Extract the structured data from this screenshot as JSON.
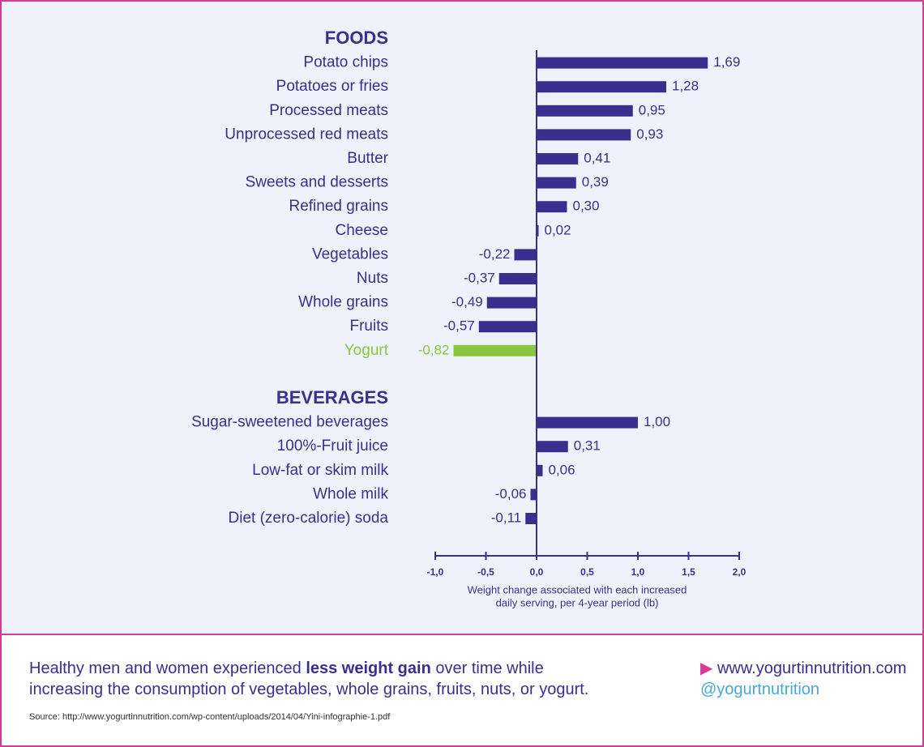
{
  "chart_data": {
    "type": "bar",
    "orientation": "horizontal",
    "groups": [
      {
        "name": "FOODS",
        "categories": [
          "Potato chips",
          "Potatoes or fries",
          "Processed meats",
          "Unprocessed red meats",
          "Butter",
          "Sweets and desserts",
          "Refined grains",
          "Cheese",
          "Vegetables",
          "Nuts",
          "Whole grains",
          "Fruits",
          "Yogurt"
        ],
        "values": [
          1.69,
          1.28,
          0.95,
          0.93,
          0.41,
          0.39,
          0.3,
          0.02,
          -0.22,
          -0.37,
          -0.49,
          -0.57,
          -0.82
        ],
        "value_labels": [
          "1,69",
          "1,28",
          "0,95",
          "0,93",
          "0,41",
          "0,39",
          "0,30",
          "0,02",
          "-0,22",
          "-0,37",
          "-0,49",
          "-0,57",
          "-0,82"
        ],
        "colors": [
          "#3a2f8f",
          "#3a2f8f",
          "#3a2f8f",
          "#3a2f8f",
          "#3a2f8f",
          "#3a2f8f",
          "#3a2f8f",
          "#3a2f8f",
          "#3a2f8f",
          "#3a2f8f",
          "#3a2f8f",
          "#3a2f8f",
          "#8cc63f"
        ]
      },
      {
        "name": "BEVERAGES",
        "categories": [
          "Sugar-sweetened beverages",
          "100%-Fruit juice",
          "Low-fat or skim milk",
          "Whole milk",
          "Diet (zero-calorie) soda"
        ],
        "values": [
          1.0,
          0.31,
          0.06,
          -0.06,
          -0.11
        ],
        "value_labels": [
          "1,00",
          "0,31",
          "0,06",
          "-0,06",
          "-0,11"
        ],
        "colors": [
          "#3a2f8f",
          "#3a2f8f",
          "#3a2f8f",
          "#3a2f8f",
          "#3a2f8f"
        ]
      }
    ],
    "xlim": [
      -1,
      2
    ],
    "xticks": [
      {
        "value": -1,
        "label": "-1,0"
      },
      {
        "value": -0.5,
        "label": "-0,5"
      },
      {
        "value": 0,
        "label": "0,0"
      },
      {
        "value": 0.5,
        "label": "0,5"
      },
      {
        "value": 1,
        "label": "1,0"
      },
      {
        "value": 1.5,
        "label": "1,5"
      },
      {
        "value": 2,
        "label": "2,0"
      }
    ],
    "x_label": [
      "Weight change associated with each increased",
      "daily serving, per 4-year period (lb)"
    ]
  },
  "footer": {
    "text_before": "Healthy men and women experienced ",
    "text_bold": "less weight gain",
    "text_after": " over time while",
    "text_line2": "increasing the consumption of vegetables, whole grains, fruits, nuts, or yogurt.",
    "website": "www.yogurtinnutrition.com",
    "handle": "@yogurtnutrition",
    "source": "Source: http://www.yogurtinnutrition.com/wp-content/uploads/2014/04/Yini-infographie-1.pdf"
  }
}
